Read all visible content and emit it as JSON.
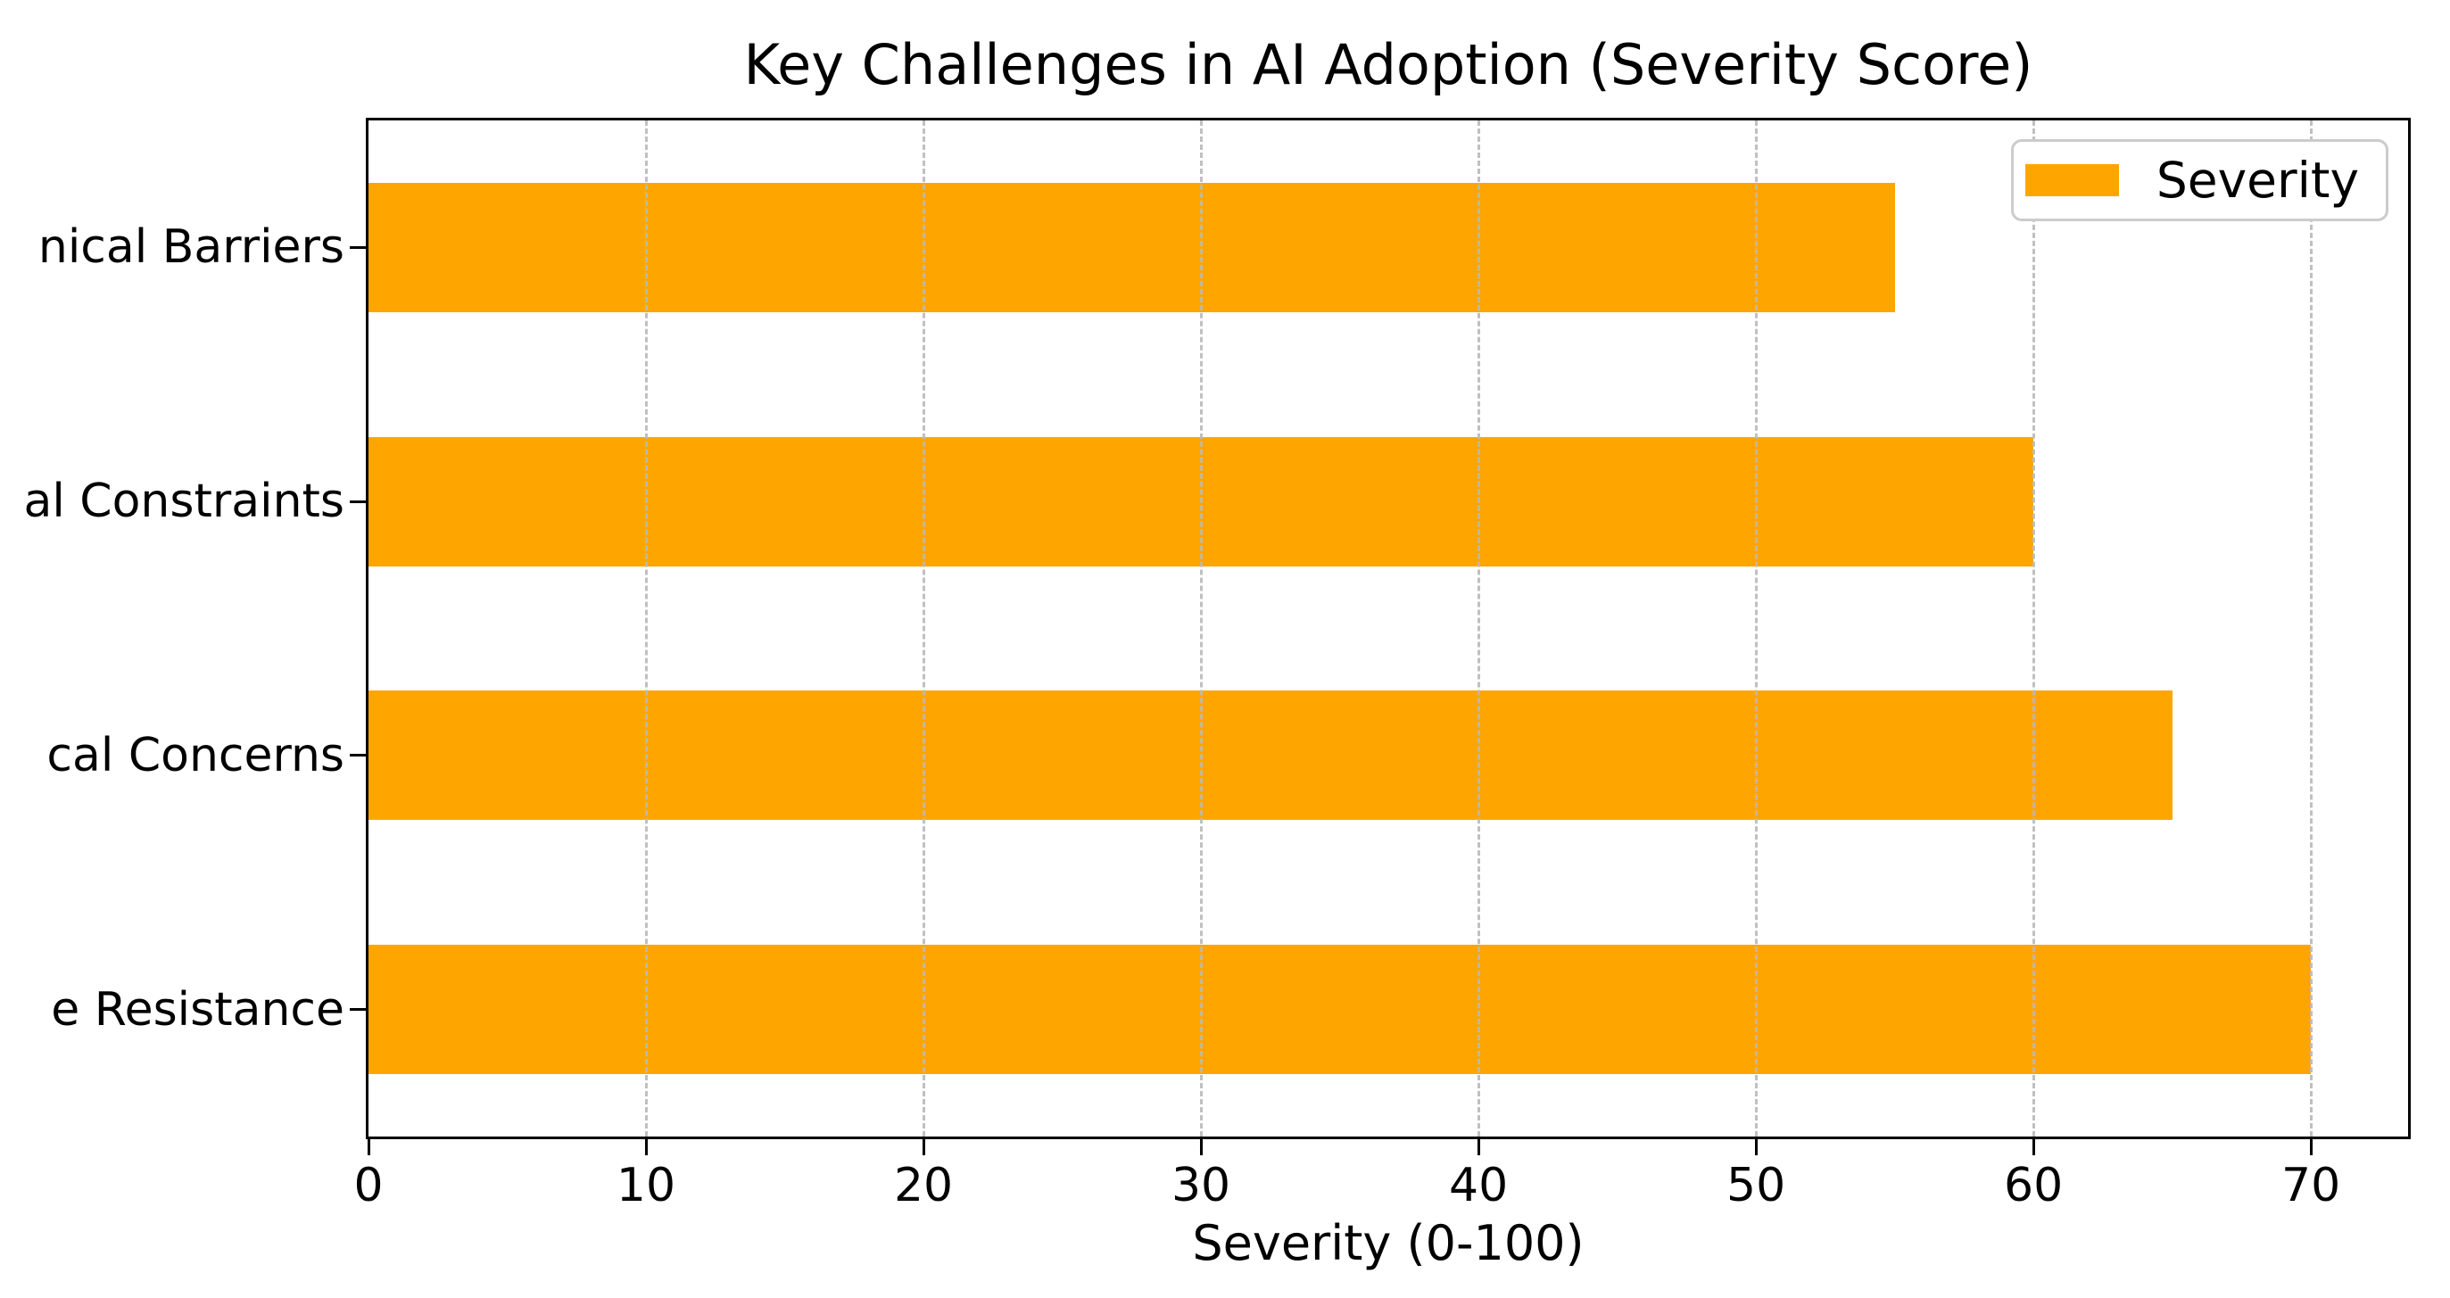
{
  "chart_data": {
    "type": "bar",
    "orientation": "horizontal",
    "title": "Key Challenges in AI Adoption (Severity Score)",
    "xlabel": "Severity (0-100)",
    "categories": [
      "nical Barriers",
      "al Constraints",
      "cal Concerns",
      "e Resistance"
    ],
    "series": [
      {
        "name": "Severity",
        "values": [
          55,
          60,
          65,
          70
        ]
      }
    ],
    "xlim": [
      0,
      73.5
    ],
    "xticks": [
      0,
      10,
      20,
      30,
      40,
      50,
      60,
      70
    ],
    "grid": {
      "axis": "x",
      "style": "dashed"
    },
    "legend": {
      "label": "Severity",
      "position": "upper-right"
    },
    "bar_color": "#FFA500"
  },
  "colors": {
    "bar": "#FFA500",
    "grid": "#b9b9b9",
    "spine": "#000000",
    "legend_border": "#cccccc",
    "background": "#ffffff",
    "text": "#000000"
  }
}
